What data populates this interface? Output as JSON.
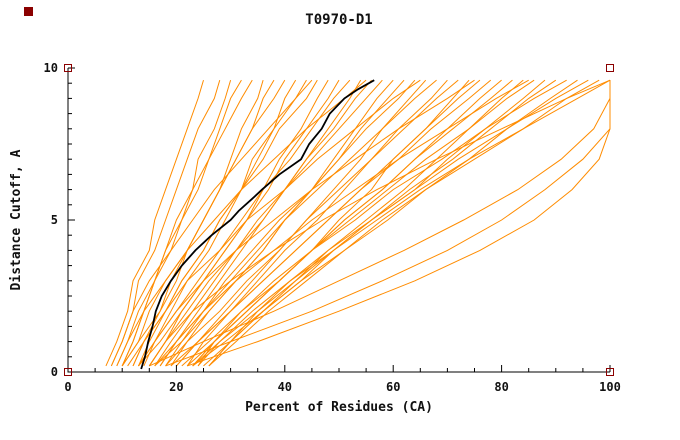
{
  "page": {
    "title": "T0970-D1"
  },
  "colors": {
    "model_line": "#ff8c00",
    "reference_line": "#000000",
    "axis": "#000000",
    "text": "#111111",
    "corner_marker": "#8b0000",
    "background": "#ffffff"
  },
  "chart_data": {
    "type": "line",
    "title": "T0970-D1",
    "xlabel": "Percent of Residues (CA)",
    "ylabel": "Distance Cutoff, A",
    "xlim": [
      0,
      100
    ],
    "ylim": [
      0,
      10
    ],
    "x_major_ticks": [
      0,
      20,
      40,
      60,
      80,
      100
    ],
    "x_minor_step": 5,
    "y_major_ticks": [
      0,
      5,
      10
    ],
    "y_minor_step": 0.5,
    "grid": false,
    "legend": "none",
    "series_y_levels": [
      0.2,
      1,
      2,
      3,
      4,
      5,
      6,
      7,
      8,
      9,
      9.6
    ],
    "series_x": [
      [
        7,
        9,
        11,
        12,
        15,
        16,
        18,
        20,
        22,
        24,
        25
      ],
      [
        8,
        10,
        12,
        13,
        16,
        18,
        20,
        22,
        24,
        27,
        28
      ],
      [
        9,
        11,
        13,
        16,
        18,
        20,
        23,
        24,
        27,
        29,
        30
      ],
      [
        9,
        11,
        14,
        16,
        19,
        21,
        23,
        26,
        28,
        30,
        32
      ],
      [
        10,
        12,
        14,
        16,
        18,
        21,
        24,
        26,
        29,
        32,
        34
      ],
      [
        10,
        13,
        17,
        20,
        22,
        25,
        28,
        30,
        32,
        35,
        36
      ],
      [
        11,
        14,
        17,
        19,
        22,
        25,
        28,
        31,
        34,
        36,
        38
      ],
      [
        10,
        13,
        15,
        18,
        22,
        25,
        28,
        31,
        34,
        38,
        40
      ],
      [
        13,
        16,
        19,
        22,
        26,
        29,
        32,
        34,
        38,
        40,
        42
      ],
      [
        12,
        14,
        18,
        21,
        25,
        28,
        32,
        35,
        38,
        42,
        44
      ],
      [
        13,
        15,
        18,
        21,
        25,
        28,
        32,
        36,
        39,
        44,
        46
      ],
      [
        13,
        17,
        21,
        25,
        29,
        33,
        36,
        39,
        43,
        46,
        48
      ],
      [
        15,
        18,
        21,
        25,
        29,
        33,
        37,
        40,
        44,
        48,
        50
      ],
      [
        13,
        16,
        20,
        24,
        28,
        32,
        36,
        41,
        45,
        49,
        52
      ],
      [
        16,
        20,
        24,
        28,
        32,
        36,
        40,
        44,
        48,
        52,
        54
      ],
      [
        15,
        18,
        22,
        26,
        31,
        35,
        40,
        44,
        49,
        53,
        56
      ],
      [
        16,
        19,
        23,
        27,
        31,
        36,
        40,
        45,
        50,
        55,
        58
      ],
      [
        16,
        21,
        26,
        31,
        36,
        40,
        45,
        49,
        53,
        57,
        60
      ],
      [
        18,
        22,
        26,
        31,
        36,
        40,
        45,
        50,
        54,
        59,
        62
      ],
      [
        17,
        20,
        25,
        29,
        34,
        39,
        45,
        50,
        55,
        61,
        64
      ],
      [
        19,
        24,
        29,
        34,
        39,
        44,
        49,
        54,
        58,
        63,
        66
      ],
      [
        17,
        20,
        25,
        30,
        35,
        40,
        46,
        52,
        58,
        64,
        68
      ],
      [
        20,
        24,
        30,
        35,
        40,
        46,
        51,
        56,
        61,
        67,
        70
      ],
      [
        19,
        22,
        28,
        33,
        39,
        44,
        50,
        56,
        62,
        68,
        72
      ],
      [
        22,
        27,
        33,
        39,
        45,
        50,
        56,
        60,
        66,
        71,
        74
      ],
      [
        20,
        24,
        30,
        36,
        42,
        48,
        54,
        60,
        66,
        72,
        76
      ],
      [
        22,
        25,
        30,
        36,
        42,
        48,
        54,
        61,
        67,
        74,
        78
      ],
      [
        21,
        26,
        32,
        39,
        45,
        51,
        58,
        64,
        70,
        76,
        80
      ],
      [
        23,
        27,
        33,
        39,
        45,
        51,
        58,
        64,
        71,
        78,
        82
      ],
      [
        23,
        28,
        35,
        42,
        48,
        55,
        62,
        68,
        74,
        80,
        84
      ],
      [
        24,
        27,
        33,
        39,
        45,
        52,
        59,
        66,
        74,
        81,
        86
      ],
      [
        23,
        29,
        36,
        43,
        49,
        56,
        64,
        70,
        77,
        84,
        88
      ],
      [
        25,
        30,
        36,
        42,
        49,
        56,
        63,
        71,
        78,
        85,
        90
      ],
      [
        23,
        27,
        32,
        38,
        45,
        53,
        60,
        69,
        77,
        86,
        92
      ],
      [
        26,
        31,
        37,
        44,
        51,
        59,
        66,
        74,
        81,
        89,
        94
      ],
      [
        24,
        28,
        34,
        41,
        48,
        56,
        64,
        72,
        81,
        90,
        96
      ],
      [
        26,
        30,
        36,
        43,
        51,
        58,
        66,
        75,
        84,
        92,
        98
      ],
      [
        26,
        30,
        35,
        41,
        49,
        57,
        65,
        74,
        84,
        94,
        100
      ],
      [
        15,
        18,
        23,
        30,
        38,
        47,
        57,
        68,
        80,
        92,
        100
      ],
      [
        12,
        14,
        18,
        22,
        28,
        33,
        40,
        46,
        53,
        60,
        65
      ],
      [
        10,
        12,
        14,
        18,
        22,
        27,
        32,
        38,
        44,
        51,
        55
      ],
      [
        8,
        10,
        12,
        15,
        19,
        23,
        27,
        32,
        37,
        42,
        45
      ],
      [
        18,
        21,
        25,
        31,
        38,
        45,
        53,
        61,
        70,
        79,
        85
      ],
      [
        14,
        16,
        20,
        25,
        31,
        38,
        45,
        53,
        61,
        70,
        75
      ],
      [
        18,
        30,
        45,
        58,
        70,
        80,
        88,
        95,
        100,
        100,
        100
      ],
      [
        15,
        25,
        38,
        50,
        62,
        73,
        83,
        91,
        97,
        100,
        100
      ],
      [
        22,
        35,
        50,
        64,
        76,
        86,
        93,
        98,
        100,
        100,
        100
      ]
    ],
    "reference_series": {
      "y": [
        0.1,
        0.5,
        1,
        1.5,
        2,
        2.5,
        3,
        3.5,
        4,
        4.5,
        5,
        5.3,
        5.7,
        6,
        6.5,
        7,
        7.5,
        8,
        8.5,
        9,
        9.3,
        9.6
      ],
      "x": [
        13.5,
        14.2,
        14.8,
        15.6,
        16.2,
        17.3,
        19,
        21,
        23.5,
        26.5,
        30,
        31.5,
        34,
        35.8,
        39,
        43,
        44.5,
        46.8,
        48.3,
        51,
        53.5,
        56.5
      ]
    }
  }
}
